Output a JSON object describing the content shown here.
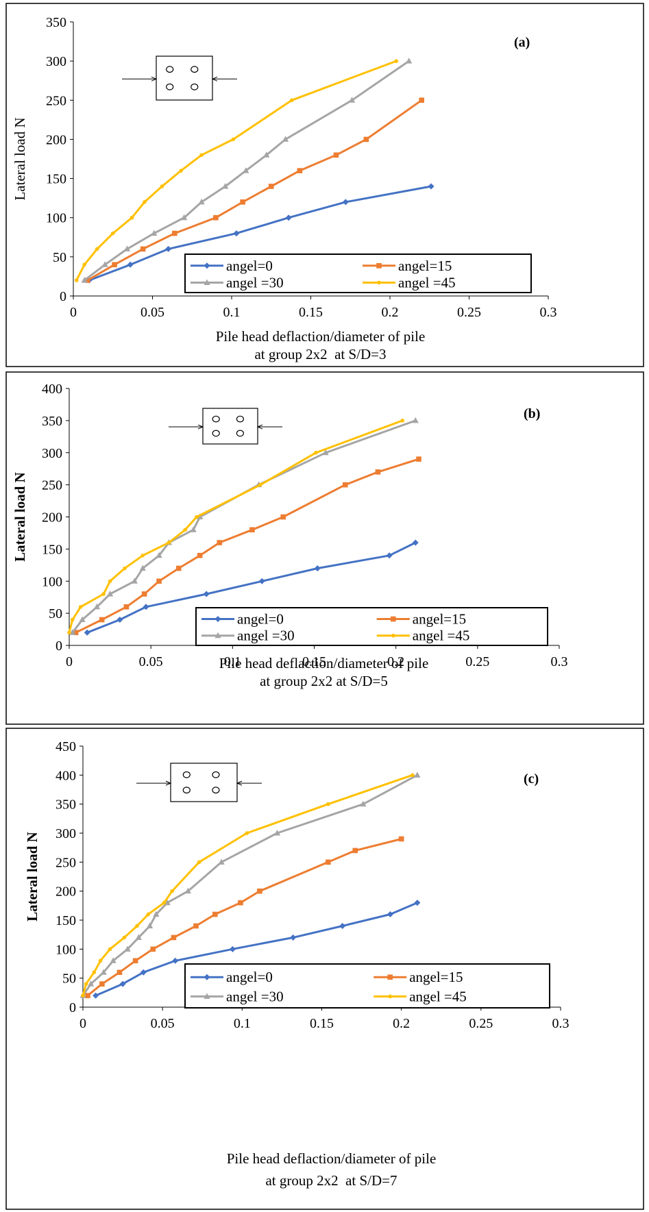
{
  "colors": {
    "angel_0": "#4472C4",
    "angel_15": "#ED7D31",
    "angel_30": "#A5A5A5",
    "angel_45": "#FFC000"
  },
  "chart_data": [
    {
      "type": "line",
      "panel_label": "(a)",
      "ylabel": "Lateral load N",
      "ylabel_bold": false,
      "xlabel_line1": "Pile head deflaction/diameter of pile",
      "xlabel_line2": "at group 2x2  at S/D=3",
      "xlim": [
        0,
        0.3
      ],
      "ylim": [
        0,
        350
      ],
      "x_ticks": [
        "0",
        "0.05",
        "0.1",
        "0.15",
        "0.2",
        "0.25",
        "0.3"
      ],
      "y_ticks": [
        "0",
        "50",
        "100",
        "150",
        "200",
        "250",
        "300",
        "350"
      ],
      "legend_position": "bottom-right",
      "series": [
        {
          "name": "angel=0",
          "marker": "diamond",
          "x": [
            0.01,
            0.036,
            0.06,
            0.103,
            0.136,
            0.172,
            0.226
          ],
          "y": [
            20,
            40,
            60,
            80,
            100,
            120,
            140
          ]
        },
        {
          "name": "angel=15",
          "marker": "square",
          "x": [
            0.009,
            0.026,
            0.044,
            0.064,
            0.09,
            0.107,
            0.125,
            0.143,
            0.166,
            0.185,
            0.22
          ],
          "y": [
            20,
            40,
            60,
            80,
            100,
            120,
            140,
            160,
            180,
            200,
            250
          ]
        },
        {
          "name": "angel =30",
          "marker": "triangle",
          "x": [
            0.007,
            0.02,
            0.034,
            0.051,
            0.07,
            0.081,
            0.096,
            0.109,
            0.122,
            0.134,
            0.176,
            0.212
          ],
          "y": [
            20,
            40,
            60,
            80,
            100,
            120,
            140,
            160,
            180,
            200,
            250,
            300
          ]
        },
        {
          "name": "angel =45",
          "marker": "dot",
          "x": [
            0.002,
            0.007,
            0.015,
            0.025,
            0.037,
            0.045,
            0.056,
            0.068,
            0.081,
            0.101,
            0.138,
            0.204
          ],
          "y": [
            20,
            40,
            60,
            80,
            100,
            120,
            140,
            160,
            180,
            200,
            250,
            300
          ]
        }
      ]
    },
    {
      "type": "line",
      "panel_label": "(b)",
      "ylabel": "Lateral load N",
      "ylabel_bold": true,
      "xlabel_line1": "Pile head deflaction/diameter of pile",
      "xlabel_line2": "at group 2x2 at S/D=5",
      "xlim": [
        0,
        0.3
      ],
      "ylim": [
        0,
        400
      ],
      "x_ticks": [
        "0",
        "0.05",
        "0.1",
        "0.15",
        "0.2",
        "0.25",
        "0.3"
      ],
      "y_ticks": [
        "0",
        "50",
        "100",
        "150",
        "200",
        "250",
        "300",
        "350",
        "400"
      ],
      "legend_position": "bottom-right",
      "series": [
        {
          "name": "angel=0",
          "marker": "diamond",
          "x": [
            0.011,
            0.031,
            0.047,
            0.084,
            0.118,
            0.152,
            0.196,
            0.212
          ],
          "y": [
            20,
            40,
            60,
            80,
            100,
            120,
            140,
            160
          ]
        },
        {
          "name": "angel=15",
          "marker": "square",
          "x": [
            0.004,
            0.02,
            0.035,
            0.046,
            0.055,
            0.067,
            0.08,
            0.092,
            0.112,
            0.131,
            0.169,
            0.189,
            0.214
          ],
          "y": [
            20,
            40,
            60,
            80,
            100,
            120,
            140,
            160,
            180,
            200,
            250,
            270,
            290
          ]
        },
        {
          "name": "angel =30",
          "marker": "triangle",
          "x": [
            0.002,
            0.008,
            0.017,
            0.025,
            0.04,
            0.045,
            0.055,
            0.061,
            0.076,
            0.08,
            0.116,
            0.157,
            0.212
          ],
          "y": [
            20,
            40,
            60,
            80,
            100,
            120,
            140,
            160,
            180,
            200,
            250,
            300,
            350
          ]
        },
        {
          "name": "angel =45",
          "marker": "dot",
          "x": [
            0.0,
            0.002,
            0.007,
            0.021,
            0.025,
            0.034,
            0.045,
            0.061,
            0.071,
            0.078,
            0.117,
            0.151,
            0.204
          ],
          "y": [
            20,
            40,
            60,
            80,
            100,
            120,
            140,
            160,
            180,
            200,
            250,
            300,
            350
          ]
        }
      ]
    },
    {
      "type": "line",
      "panel_label": "(c)",
      "ylabel": "Lateral load N",
      "ylabel_bold": true,
      "xlabel_line1": "Pile head deflaction/diameter of pile",
      "xlabel_line2": "at group 2x2  at S/D=7",
      "xlim": [
        0,
        0.3
      ],
      "ylim": [
        0,
        450
      ],
      "x_ticks": [
        "0",
        "0.05",
        "0.1",
        "0.15",
        "0.2",
        "0.25",
        "0.3"
      ],
      "y_ticks": [
        "0",
        "50",
        "100",
        "150",
        "200",
        "250",
        "300",
        "350",
        "400",
        "450"
      ],
      "legend_position": "bottom-right",
      "series": [
        {
          "name": "angel=0",
          "marker": "diamond",
          "x": [
            0.008,
            0.025,
            0.038,
            0.058,
            0.094,
            0.132,
            0.163,
            0.193,
            0.21
          ],
          "y": [
            20,
            40,
            60,
            80,
            100,
            120,
            140,
            160,
            180
          ]
        },
        {
          "name": "angel=15",
          "marker": "square",
          "x": [
            0.003,
            0.012,
            0.023,
            0.033,
            0.044,
            0.057,
            0.071,
            0.083,
            0.099,
            0.111,
            0.154,
            0.171,
            0.2
          ],
          "y": [
            20,
            40,
            60,
            80,
            100,
            120,
            140,
            160,
            180,
            200,
            250,
            270,
            290
          ]
        },
        {
          "name": "angel =30",
          "marker": "triangle",
          "x": [
            0.0,
            0.005,
            0.013,
            0.019,
            0.028,
            0.035,
            0.042,
            0.046,
            0.053,
            0.066,
            0.087,
            0.122,
            0.176,
            0.21
          ],
          "y": [
            20,
            40,
            60,
            80,
            100,
            120,
            140,
            160,
            180,
            200,
            250,
            300,
            350,
            400
          ]
        },
        {
          "name": "angel =45",
          "marker": "dot",
          "x": [
            0.0,
            0.002,
            0.007,
            0.011,
            0.017,
            0.026,
            0.034,
            0.041,
            0.051,
            0.056,
            0.073,
            0.103,
            0.154,
            0.207
          ],
          "y": [
            20,
            40,
            60,
            80,
            100,
            120,
            140,
            160,
            180,
            200,
            250,
            300,
            350,
            400
          ]
        }
      ]
    }
  ]
}
